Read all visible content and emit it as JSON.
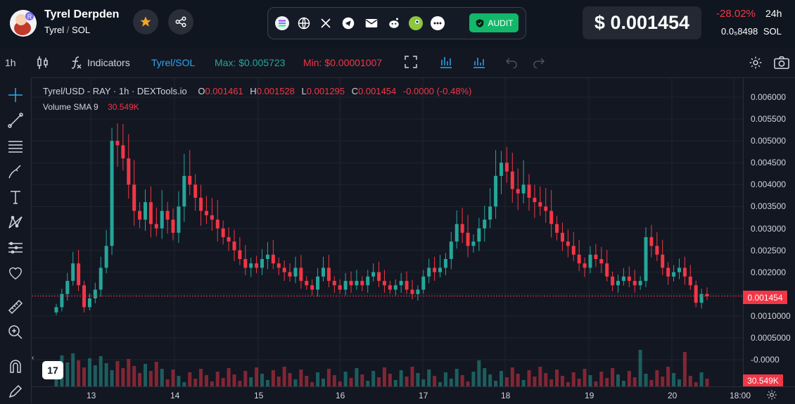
{
  "header": {
    "token_name": "Tyrel Derpden",
    "symbol": "Tyrel",
    "pair_sep": "/",
    "quote": "SOL",
    "audit_label": "AUDIT",
    "price": "$ 0.001454",
    "change": "-28.02%",
    "period": "24h",
    "sol_price": "0.0₅8498",
    "sol_label": "SOL"
  },
  "toolbar": {
    "interval": "1h",
    "indicators_label": "Indicators",
    "pair": "Tyrel/SOL",
    "max": "Max: $0.005723",
    "min": "Min: $0.00001007"
  },
  "legend": {
    "title": "Tyrel/USD - RAY · 1h · DEXTools.io",
    "o_lbl": "O",
    "o": "0.001461",
    "h_lbl": "H",
    "h": "0.001528",
    "l_lbl": "L",
    "l": "0.001295",
    "c_lbl": "C",
    "c": "0.001454",
    "chg": "-0.0000 (-0.48%)",
    "vol_label": "Volume SMA 9",
    "vol_value": "30.549K"
  },
  "price_tag": "0.001454",
  "vol_tag": "30.549K",
  "colors": {
    "up": "#26a69a",
    "down": "#f23645",
    "bg": "#131722"
  },
  "chart_data": {
    "type": "candlestick",
    "x_ticks": [
      "13",
      "14",
      "15",
      "16",
      "17",
      "18",
      "19",
      "20",
      "18:00"
    ],
    "y_ticks": [
      "0.006000",
      "0.005500",
      "0.005000",
      "0.004500",
      "0.004000",
      "0.003500",
      "0.003000",
      "0.002500",
      "0.002000",
      "0.001500",
      "0.0010000",
      "0.0005000",
      "-0.0000"
    ],
    "ylim": [
      0,
      0.0065
    ],
    "last_price": 0.001454,
    "series": [
      {
        "name": "price_close",
        "values": [
          0.0012,
          0.0015,
          0.0018,
          0.0022,
          0.0017,
          0.0012,
          0.0014,
          0.0016,
          0.0021,
          0.0026,
          0.005,
          0.0049,
          0.0046,
          0.004,
          0.0034,
          0.0032,
          0.0036,
          0.0031,
          0.003,
          0.0034,
          0.0032,
          0.0029,
          0.0035,
          0.0042,
          0.004,
          0.0037,
          0.0034,
          0.0033,
          0.0032,
          0.003,
          0.0028,
          0.0027,
          0.0025,
          0.0023,
          0.0021,
          0.0022,
          0.0021,
          0.0023,
          0.0024,
          0.0022,
          0.0021,
          0.002,
          0.0019,
          0.0021,
          0.0018,
          0.0017,
          0.0016,
          0.0019,
          0.0021,
          0.0018,
          0.0017,
          0.0016,
          0.0018,
          0.0017,
          0.0018,
          0.0017,
          0.0019,
          0.002,
          0.0018,
          0.0017,
          0.0016,
          0.0017,
          0.0018,
          0.0016,
          0.0015,
          0.0016,
          0.0019,
          0.0021,
          0.002,
          0.0021,
          0.0023,
          0.0027,
          0.0031,
          0.0029,
          0.0026,
          0.0027,
          0.003,
          0.0032,
          0.0035,
          0.0042,
          0.0045,
          0.0043,
          0.0039,
          0.0038,
          0.004,
          0.0037,
          0.0036,
          0.0035,
          0.0034,
          0.0031,
          0.0029,
          0.0027,
          0.0026,
          0.0024,
          0.0022,
          0.0021,
          0.0024,
          0.0023,
          0.0022,
          0.0019,
          0.0017,
          0.0018,
          0.0019,
          0.0018,
          0.0017,
          0.0018,
          0.0028,
          0.0026,
          0.0024,
          0.0021,
          0.0019,
          0.002,
          0.0021,
          0.0019,
          0.0017,
          0.0013,
          0.0015,
          0.00145
        ]
      }
    ]
  }
}
